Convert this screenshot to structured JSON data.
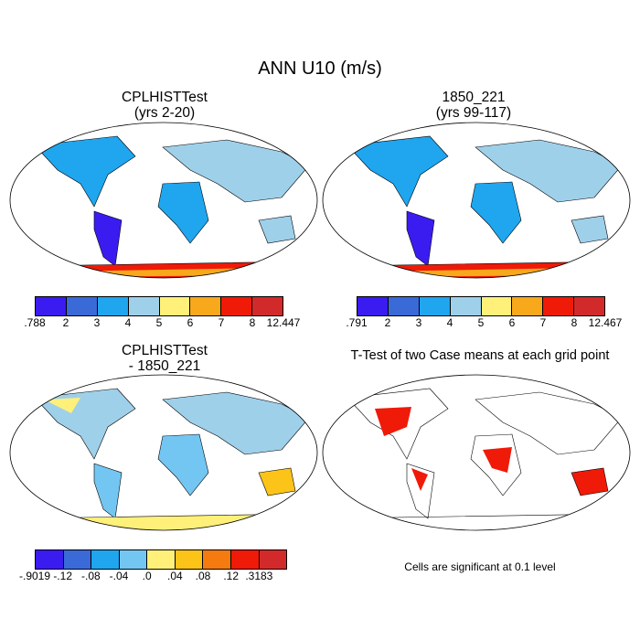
{
  "main_title": "ANN U10 (m/s)",
  "panels": {
    "top_left": {
      "title_line1": "CPLHISTTest",
      "title_line2": "(yrs 2-20)"
    },
    "top_right": {
      "title_line1": "1850_221",
      "title_line2": "(yrs 99-117)"
    },
    "bottom_left": {
      "title_line1": "CPLHISTTest",
      "title_line2": "- 1850_221"
    },
    "bottom_right": {
      "title_line1": "T-Test of two Case means at each grid point",
      "note": "Cells are significant at 0.1 level"
    }
  },
  "colorbars": {
    "top_left": {
      "colors": [
        "#3a1cf0",
        "#3a6ad8",
        "#1fa6ef",
        "#9fd0ea",
        "#fff07a",
        "#f7a81b",
        "#f01a08",
        "#d22a2a"
      ],
      "labels": [
        ".788",
        "2",
        "3",
        "4",
        "5",
        "6",
        "7",
        "8",
        "12.447"
      ]
    },
    "top_right": {
      "colors": [
        "#3a1cf0",
        "#3a6ad8",
        "#1fa6ef",
        "#9fd0ea",
        "#fff07a",
        "#f7a81b",
        "#f01a08",
        "#d22a2a"
      ],
      "labels": [
        ".791",
        "2",
        "3",
        "4",
        "5",
        "6",
        "7",
        "8",
        "12.467"
      ]
    },
    "bottom_left": {
      "colors": [
        "#3a1cf0",
        "#3a6ad8",
        "#1fa6ef",
        "#74c6f2",
        "#fff07a",
        "#fcc419",
        "#f57a10",
        "#f01a08",
        "#d22a2a"
      ],
      "labels": [
        "-.9019",
        "-.12",
        "-.08",
        "-.04",
        ".0",
        ".04",
        ".08",
        ".12",
        ".3183"
      ]
    }
  }
}
